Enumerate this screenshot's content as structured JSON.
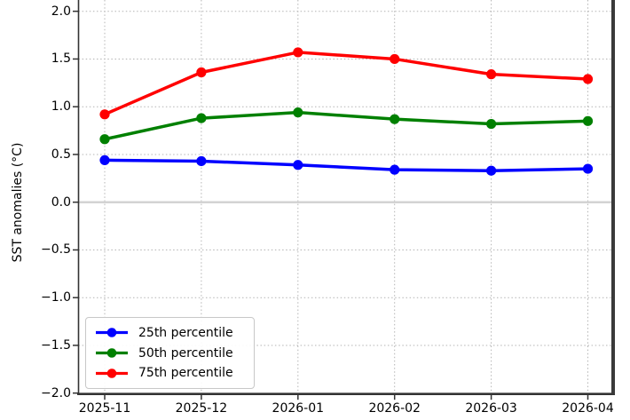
{
  "chart_data": {
    "type": "line",
    "categories": [
      "2025-11",
      "2025-12",
      "2026-01",
      "2026-02",
      "2026-03",
      "2026-04"
    ],
    "series": [
      {
        "name": "25th percentile",
        "color": "#0000ff",
        "values": [
          0.44,
          0.43,
          0.39,
          0.34,
          0.33,
          0.35
        ]
      },
      {
        "name": "50th percentile",
        "color": "#008000",
        "values": [
          0.66,
          0.88,
          0.94,
          0.87,
          0.82,
          0.85
        ]
      },
      {
        "name": "75th percentile",
        "color": "#ff0000",
        "values": [
          0.92,
          1.36,
          1.57,
          1.5,
          1.34,
          1.29
        ]
      }
    ],
    "title": "",
    "xlabel": "",
    "ylabel": "SST anomalies (°C)",
    "ylim": [
      -2.0,
      2.0
    ],
    "yticks": {
      "values": [
        2.0,
        1.5,
        1.0,
        0.5,
        0.0,
        -0.5,
        -1.0,
        -1.5,
        -2.0
      ],
      "labels": [
        "2.0",
        "1.5",
        "1.0",
        "0.5",
        "0.0",
        "−0.5",
        "−1.0",
        "−1.5",
        "−2.0"
      ]
    },
    "grid": true,
    "grid_style": "dotted",
    "legend_position": "lower left",
    "zero_line": true,
    "marker": "circle"
  },
  "chart_colors": {
    "grid": "#b4b4b4",
    "zero_line": "#d3d3d3",
    "spine": "#333333",
    "tick": "#333333",
    "background": "#ffffff"
  },
  "legend": {
    "items": [
      {
        "label": "25th percentile"
      },
      {
        "label": "50th percentile"
      },
      {
        "label": "75th percentile"
      }
    ]
  }
}
